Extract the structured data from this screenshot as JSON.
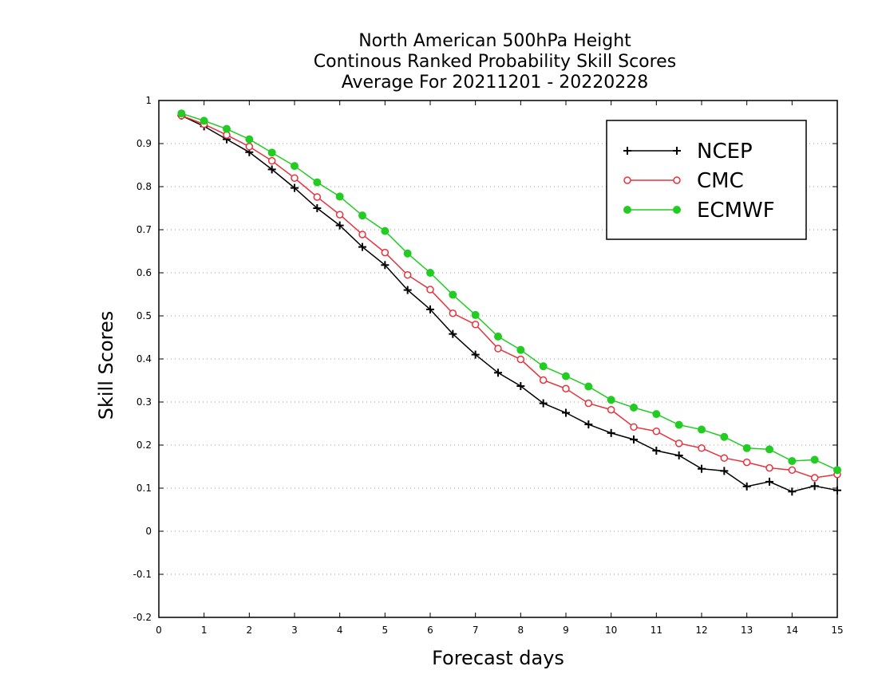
{
  "chart_data": {
    "type": "line",
    "title_lines": [
      "North American 500hPa Height",
      "Continous Ranked Probability Skill Scores",
      "Average For 20211201 - 20220228"
    ],
    "xlabel": "Forecast days",
    "ylabel": "Skill Scores",
    "xlim": [
      0,
      15
    ],
    "ylim": [
      -0.2,
      1
    ],
    "x_ticks": [
      "0",
      "1",
      "2",
      "3",
      "4",
      "5",
      "6",
      "7",
      "8",
      "9",
      "10",
      "11",
      "12",
      "13",
      "14",
      "15"
    ],
    "y_ticks": [
      "-0.2",
      "-0.1",
      "0",
      "0.1",
      "0.2",
      "0.3",
      "0.4",
      "0.5",
      "0.6",
      "0.7",
      "0.8",
      "0.9",
      "1"
    ],
    "grid": "horizontal dotted",
    "legend_position": "top-right",
    "x": [
      0.5,
      1,
      1.5,
      2,
      2.5,
      3,
      3.5,
      4,
      4.5,
      5,
      5.5,
      6,
      6.5,
      7,
      7.5,
      8,
      8.5,
      9,
      9.5,
      10,
      10.5,
      11,
      11.5,
      12,
      12.5,
      13,
      13.5,
      14,
      14.5,
      15
    ],
    "series": [
      {
        "name": "NCEP",
        "color": "#000000",
        "marker": "plus",
        "values": [
          0.965,
          0.94,
          0.91,
          0.88,
          0.84,
          0.797,
          0.75,
          0.71,
          0.66,
          0.618,
          0.56,
          0.515,
          0.458,
          0.41,
          0.368,
          0.337,
          0.297,
          0.275,
          0.248,
          0.228,
          0.213,
          0.187,
          0.176,
          0.145,
          0.14,
          0.104,
          0.115,
          0.092,
          0.105,
          0.095
        ]
      },
      {
        "name": "CMC",
        "color": "#e8323c",
        "marker": "open-circle",
        "values": [
          0.965,
          0.945,
          0.92,
          0.893,
          0.86,
          0.82,
          0.776,
          0.735,
          0.689,
          0.647,
          0.595,
          0.561,
          0.506,
          0.48,
          0.424,
          0.399,
          0.351,
          0.331,
          0.297,
          0.282,
          0.242,
          0.232,
          0.204,
          0.193,
          0.17,
          0.16,
          0.147,
          0.142,
          0.124,
          0.132
        ]
      },
      {
        "name": "ECMWF",
        "color": "#22cc22",
        "marker": "filled-circle",
        "values": [
          0.97,
          0.953,
          0.934,
          0.91,
          0.879,
          0.848,
          0.81,
          0.777,
          0.733,
          0.697,
          0.645,
          0.6,
          0.549,
          0.502,
          0.452,
          0.421,
          0.383,
          0.36,
          0.336,
          0.305,
          0.287,
          0.272,
          0.247,
          0.236,
          0.219,
          0.193,
          0.19,
          0.163,
          0.166,
          0.142
        ]
      }
    ]
  }
}
